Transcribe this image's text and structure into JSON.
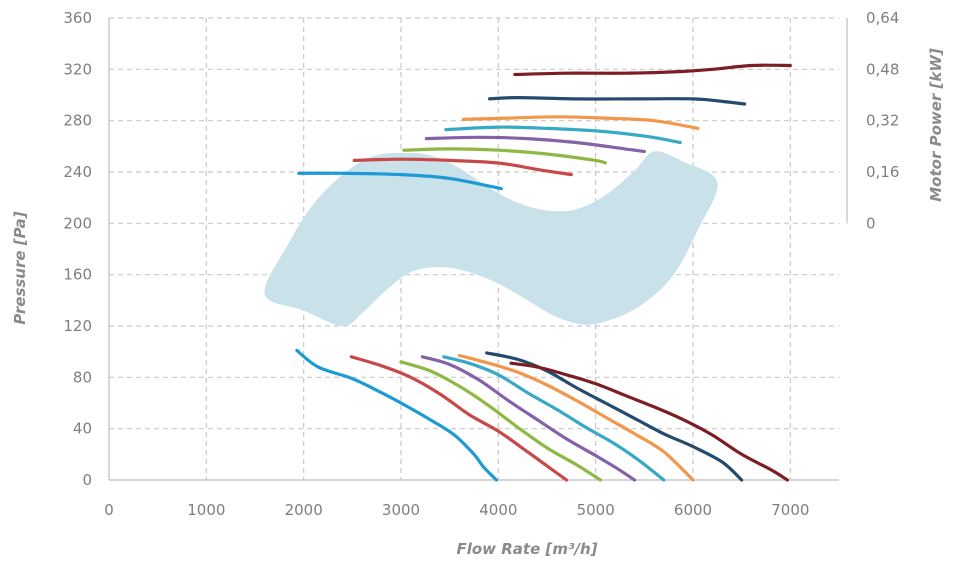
{
  "chart_data": {
    "type": "line",
    "xlabel": "Flow Rate [m³/h]",
    "ylabel": "Pressure [Pa]",
    "y2label": "Motor Power [kW]",
    "xlim": [
      0,
      7500
    ],
    "ylim": [
      0,
      360
    ],
    "y2lim": [
      0,
      0.64
    ],
    "y2_plotted_span_pa": [
      200,
      360
    ],
    "grid": true,
    "x_ticks": [
      "0",
      "1000",
      "2000",
      "3000",
      "4000",
      "5000",
      "6000",
      "7000"
    ],
    "y_ticks": [
      "0",
      "40",
      "80",
      "120",
      "160",
      "200",
      "240",
      "280",
      "320",
      "360"
    ],
    "y2_ticks": [
      "0",
      "0,16",
      "0,32",
      "0,48",
      "0,64"
    ],
    "operating_region": {
      "color": "#c9e2ea",
      "upper_edge": [
        [
          1600,
          145
        ],
        [
          1850,
          185
        ],
        [
          2100,
          215
        ],
        [
          2400,
          238
        ],
        [
          2700,
          252
        ],
        [
          3000,
          255
        ],
        [
          3300,
          253
        ],
        [
          3600,
          243
        ],
        [
          3900,
          228
        ],
        [
          4200,
          216
        ],
        [
          4500,
          210
        ],
        [
          4800,
          211
        ],
        [
          5100,
          222
        ],
        [
          5400,
          241
        ],
        [
          5600,
          256
        ],
        [
          5900,
          248
        ],
        [
          6250,
          232
        ]
      ],
      "lower_edge": [
        [
          6250,
          232
        ],
        [
          6050,
          195
        ],
        [
          5800,
          160
        ],
        [
          5500,
          138
        ],
        [
          5200,
          126
        ],
        [
          4900,
          121
        ],
        [
          4600,
          127
        ],
        [
          4300,
          140
        ],
        [
          4000,
          153
        ],
        [
          3700,
          162
        ],
        [
          3400,
          166
        ],
        [
          3100,
          162
        ],
        [
          2850,
          148
        ],
        [
          2600,
          130
        ],
        [
          2400,
          120
        ],
        [
          2000,
          132
        ],
        [
          1600,
          145
        ]
      ]
    },
    "pressure_series": [
      {
        "color": "#1b9ad6",
        "points": [
          [
            1930,
            101
          ],
          [
            2150,
            88
          ],
          [
            2500,
            79
          ],
          [
            2800,
            68
          ],
          [
            3000,
            60
          ],
          [
            3300,
            47
          ],
          [
            3550,
            35
          ],
          [
            3750,
            20
          ],
          [
            3850,
            10
          ],
          [
            3980,
            0
          ]
        ]
      },
      {
        "color": "#c8484a",
        "points": [
          [
            2490,
            96
          ],
          [
            2800,
            89
          ],
          [
            3100,
            80
          ],
          [
            3400,
            67
          ],
          [
            3700,
            51
          ],
          [
            4000,
            38
          ],
          [
            4300,
            22
          ],
          [
            4500,
            11
          ],
          [
            4700,
            0
          ]
        ]
      },
      {
        "color": "#8db843",
        "points": [
          [
            3000,
            92
          ],
          [
            3300,
            85
          ],
          [
            3600,
            73
          ],
          [
            3900,
            58
          ],
          [
            4200,
            41
          ],
          [
            4500,
            25
          ],
          [
            4800,
            12
          ],
          [
            5050,
            0
          ]
        ]
      },
      {
        "color": "#8561a8",
        "points": [
          [
            3220,
            96
          ],
          [
            3500,
            90
          ],
          [
            3800,
            78
          ],
          [
            4100,
            62
          ],
          [
            4400,
            47
          ],
          [
            4700,
            32
          ],
          [
            5000,
            19
          ],
          [
            5200,
            10
          ],
          [
            5400,
            0
          ]
        ]
      },
      {
        "color": "#37a9c4",
        "points": [
          [
            3440,
            96
          ],
          [
            3700,
            91
          ],
          [
            4000,
            82
          ],
          [
            4300,
            68
          ],
          [
            4600,
            55
          ],
          [
            4900,
            41
          ],
          [
            5200,
            28
          ],
          [
            5450,
            15
          ],
          [
            5700,
            0
          ]
        ]
      },
      {
        "color": "#f2974a",
        "points": [
          [
            3600,
            97
          ],
          [
            3900,
            91
          ],
          [
            4200,
            84
          ],
          [
            4500,
            74
          ],
          [
            4800,
            62
          ],
          [
            5100,
            49
          ],
          [
            5400,
            36
          ],
          [
            5700,
            22
          ],
          [
            6000,
            0
          ]
        ]
      },
      {
        "color": "#244a6e",
        "points": [
          [
            3880,
            99
          ],
          [
            4200,
            94
          ],
          [
            4500,
            85
          ],
          [
            4800,
            72
          ],
          [
            5100,
            60
          ],
          [
            5400,
            48
          ],
          [
            5700,
            36
          ],
          [
            6000,
            26
          ],
          [
            6300,
            14
          ],
          [
            6500,
            0
          ]
        ]
      },
      {
        "color": "#7c1f25",
        "points": [
          [
            4130,
            91
          ],
          [
            4400,
            88
          ],
          [
            4700,
            82
          ],
          [
            5000,
            75
          ],
          [
            5300,
            66
          ],
          [
            5600,
            57
          ],
          [
            5900,
            47
          ],
          [
            6200,
            35
          ],
          [
            6500,
            20
          ],
          [
            6800,
            8
          ],
          [
            6970,
            0
          ]
        ]
      }
    ],
    "power_series": [
      {
        "color": "#1b9ad6",
        "points": [
          [
            1950,
            239
          ],
          [
            2400,
            239
          ],
          [
            3000,
            238
          ],
          [
            3500,
            235
          ],
          [
            4030,
            227
          ]
        ]
      },
      {
        "color": "#c8484a",
        "points": [
          [
            2520,
            249
          ],
          [
            3000,
            250
          ],
          [
            3500,
            249
          ],
          [
            4000,
            247
          ],
          [
            4400,
            242
          ],
          [
            4750,
            238
          ]
        ]
      },
      {
        "color": "#8db843",
        "points": [
          [
            3030,
            257
          ],
          [
            3500,
            258
          ],
          [
            4000,
            257
          ],
          [
            4500,
            254
          ],
          [
            5000,
            249
          ],
          [
            5100,
            247
          ]
        ]
      },
      {
        "color": "#8561a8",
        "points": [
          [
            3260,
            266
          ],
          [
            3800,
            267
          ],
          [
            4300,
            266
          ],
          [
            4800,
            263
          ],
          [
            5300,
            258
          ],
          [
            5500,
            256
          ]
        ]
      },
      {
        "color": "#37a9c4",
        "points": [
          [
            3460,
            273
          ],
          [
            4000,
            275
          ],
          [
            4500,
            274
          ],
          [
            5000,
            272
          ],
          [
            5500,
            268
          ],
          [
            5870,
            263
          ]
        ]
      },
      {
        "color": "#f2974a",
        "points": [
          [
            3640,
            281
          ],
          [
            4100,
            282
          ],
          [
            4600,
            283
          ],
          [
            5100,
            282
          ],
          [
            5600,
            280
          ],
          [
            6050,
            274
          ]
        ]
      },
      {
        "color": "#244a6e",
        "points": [
          [
            3910,
            297
          ],
          [
            4200,
            298
          ],
          [
            4800,
            297
          ],
          [
            5400,
            297
          ],
          [
            6000,
            297
          ],
          [
            6300,
            295
          ],
          [
            6530,
            293
          ]
        ]
      },
      {
        "color": "#7c1f25",
        "points": [
          [
            4170,
            316
          ],
          [
            4700,
            317
          ],
          [
            5300,
            317
          ],
          [
            5800,
            318
          ],
          [
            6200,
            320
          ],
          [
            6600,
            323
          ],
          [
            7000,
            323
          ]
        ]
      }
    ]
  }
}
